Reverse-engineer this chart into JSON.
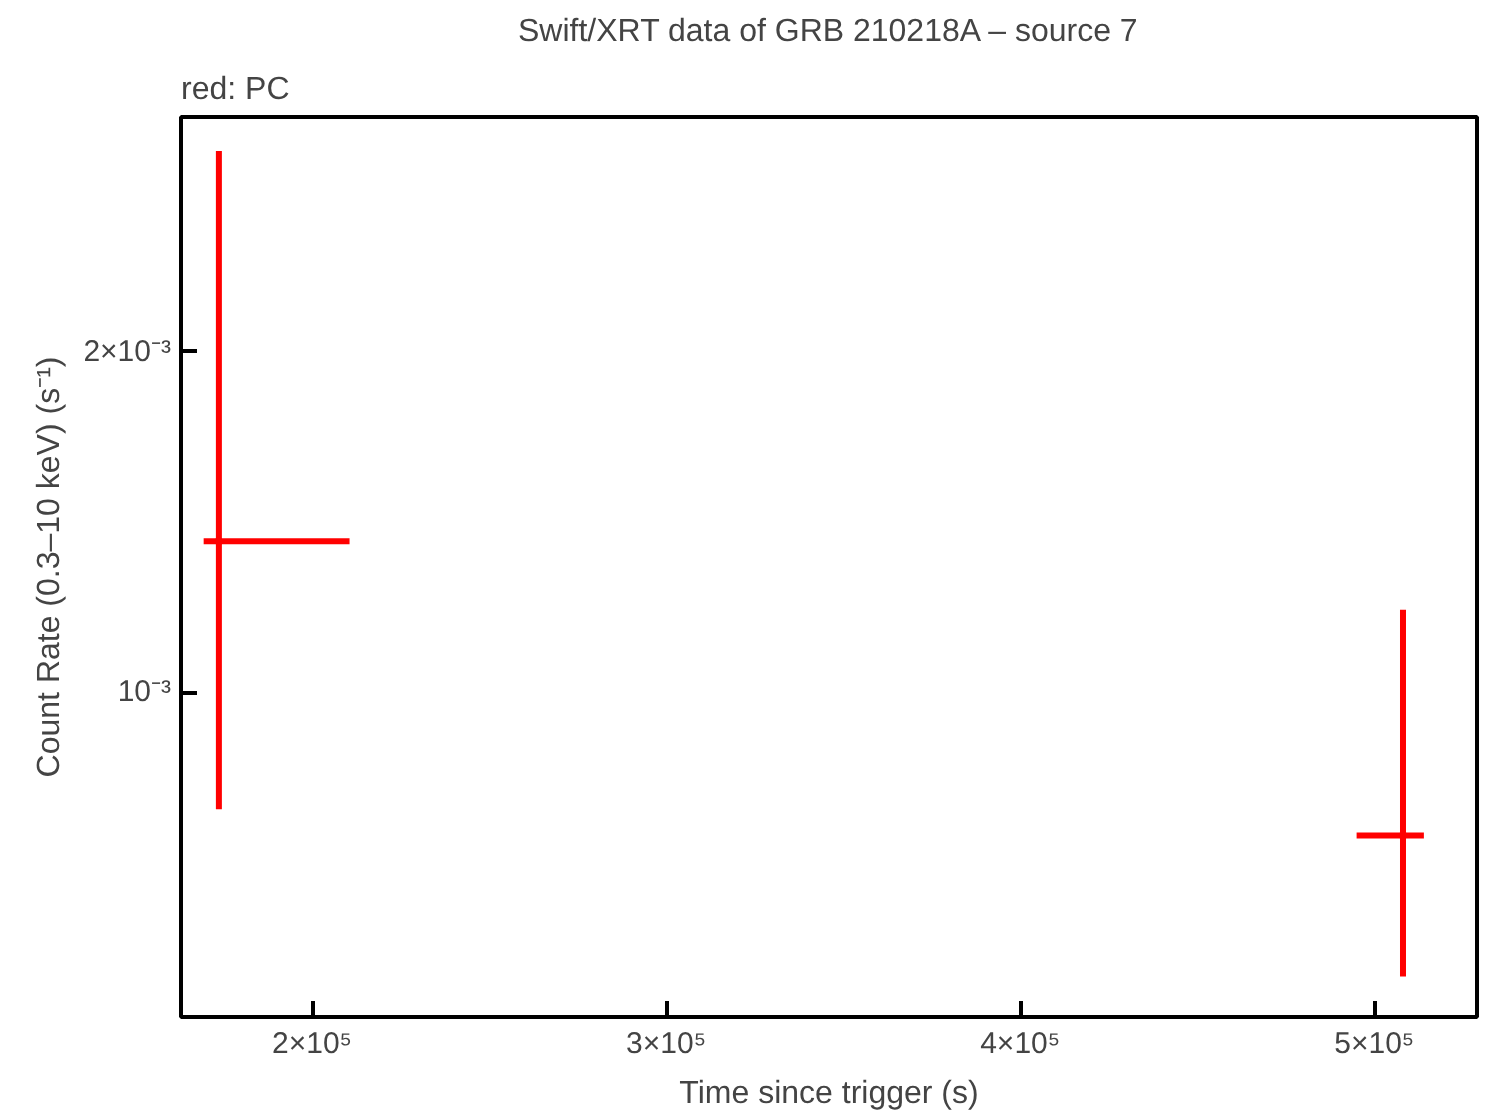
{
  "chart_data": {
    "type": "scatter",
    "title": "Swift/XRT data of GRB 210218A – source 7",
    "xlabel": "Time since trigger (s)",
    "ylabel": "Count Rate (0.3–10 keV) (s⁻¹)",
    "annotations": [
      "red: PC"
    ],
    "marker": "none",
    "grid": false,
    "series": [
      {
        "color": "#ff0000",
        "x": [
          173700,
          508100
        ],
        "values": [
          0.001444,
          0.00058
        ],
        "errors": [
          [
            0.000657,
            0.00259
          ],
          [
            0.000166,
            0.001243
          ]
        ],
        "xerrors": [
          [
            169400,
            210600
          ],
          [
            495000,
            514000
          ]
        ]
      }
    ],
    "xlim": [
      163000,
      529000
    ],
    "ylim": [
      4.7e-05,
      0.00269
    ],
    "xticks": [
      {
        "value": 200000,
        "label": "2×10⁵"
      },
      {
        "value": 300000,
        "label": "3×10⁵"
      },
      {
        "value": 400000,
        "label": "4×10⁵"
      },
      {
        "value": 500000,
        "label": "5×10⁵"
      }
    ],
    "yticks": [
      {
        "value": 0.001,
        "label": "10⁻³"
      },
      {
        "value": 0.002,
        "label": "2×10⁻³"
      }
    ]
  }
}
